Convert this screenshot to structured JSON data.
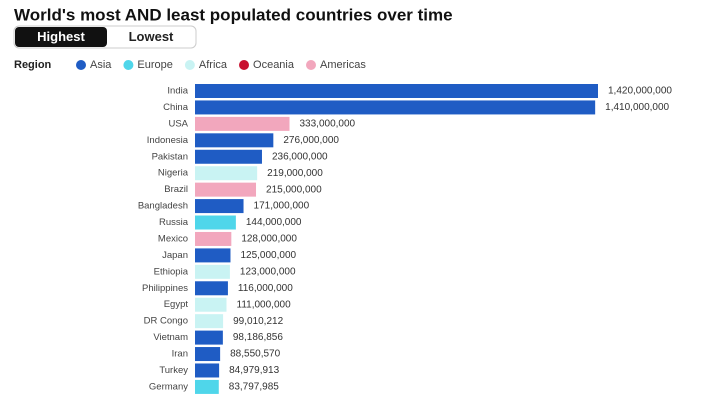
{
  "chart_data": {
    "type": "bar",
    "orientation": "horizontal",
    "title": "World's most AND least populated countries over time",
    "toggle": [
      "Highest",
      "Lowest"
    ],
    "legend": {
      "title": "Region",
      "items": [
        {
          "name": "Asia",
          "color": "#1f5cc4"
        },
        {
          "name": "Europe",
          "color": "#4fd6ea"
        },
        {
          "name": "Africa",
          "color": "#c9f3f3"
        },
        {
          "name": "Oceania",
          "color": "#c8102e"
        },
        {
          "name": "Americas",
          "color": "#f2a7bd"
        }
      ]
    },
    "categories": [
      "India",
      "China",
      "USA",
      "Indonesia",
      "Pakistan",
      "Nigeria",
      "Brazil",
      "Bangladesh",
      "Russia",
      "Mexico",
      "Japan",
      "Ethiopia",
      "Philippines",
      "Egypt",
      "DR Congo",
      "Vietnam",
      "Iran",
      "Turkey",
      "Germany"
    ],
    "values": [
      1420000000,
      1410000000,
      333000000,
      276000000,
      236000000,
      219000000,
      215000000,
      171000000,
      144000000,
      128000000,
      125000000,
      123000000,
      116000000,
      111000000,
      99010212,
      98186856,
      88550570,
      84979913,
      83797985
    ],
    "value_labels": [
      "1,420,000,000",
      "1,410,000,000",
      "333,000,000",
      "276,000,000",
      "236,000,000",
      "219,000,000",
      "215,000,000",
      "171,000,000",
      "144,000,000",
      "128,000,000",
      "125,000,000",
      "123,000,000",
      "116,000,000",
      "111,000,000",
      "99,010,212",
      "98,186,856",
      "88,550,570",
      "84,979,913",
      "83,797,985"
    ],
    "colors": [
      "#1f5cc4",
      "#1f5cc4",
      "#f2a7bd",
      "#1f5cc4",
      "#1f5cc4",
      "#c9f3f3",
      "#f2a7bd",
      "#1f5cc4",
      "#4fd6ea",
      "#f2a7bd",
      "#1f5cc4",
      "#c9f3f3",
      "#1f5cc4",
      "#c9f3f3",
      "#c9f3f3",
      "#1f5cc4",
      "#1f5cc4",
      "#1f5cc4",
      "#4fd6ea"
    ],
    "xlim": [
      0,
      1420000000
    ]
  }
}
